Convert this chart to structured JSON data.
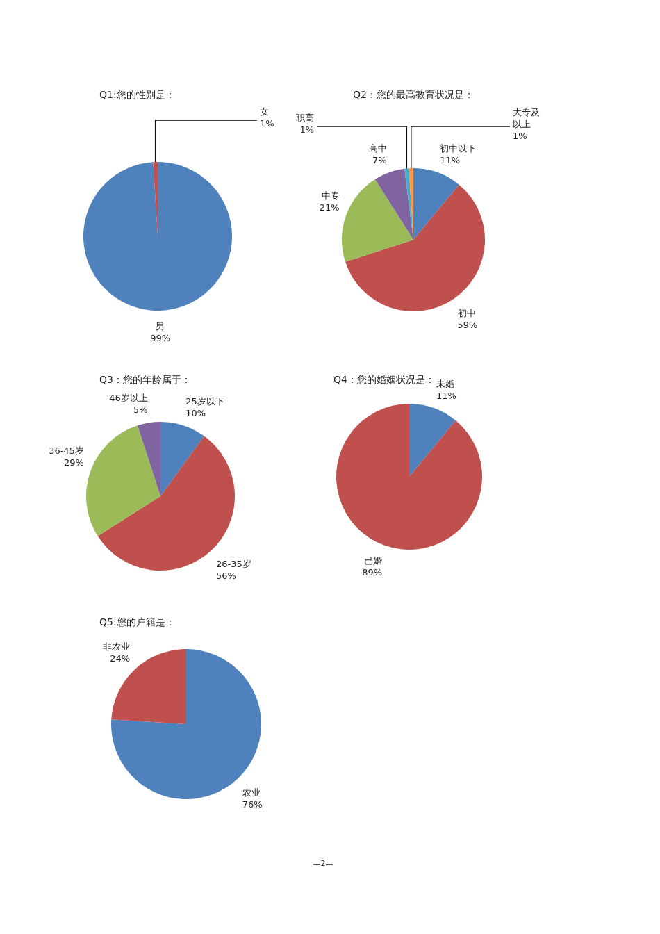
{
  "chart_data": [
    {
      "type": "pie",
      "title": "Q1:您的性别是：",
      "categories": [
        "男",
        "女"
      ],
      "values": [
        99,
        1
      ],
      "value_labels": [
        "99%",
        "1%"
      ],
      "colors": [
        "#4f81bd",
        "#c0504d"
      ]
    },
    {
      "type": "pie",
      "title": "Q2：您的最高教育状况是：",
      "categories": [
        "初中以下",
        "初中",
        "中专",
        "高中",
        "职高",
        "大专及以上"
      ],
      "values": [
        11,
        59,
        21,
        7,
        1,
        1
      ],
      "value_labels": [
        "11%",
        "59%",
        "21%",
        "7%",
        "1%",
        "1%"
      ],
      "colors": [
        "#4f81bd",
        "#c0504d",
        "#9bbb59",
        "#8064a2",
        "#4bacc6",
        "#f79646"
      ]
    },
    {
      "type": "pie",
      "title": "Q3：您的年龄属于：",
      "categories": [
        "25岁以下",
        "26-35岁",
        "36-45岁",
        "46岁以上"
      ],
      "values": [
        10,
        56,
        29,
        5
      ],
      "value_labels": [
        "10%",
        "56%",
        "29%",
        "5%"
      ],
      "colors": [
        "#4f81bd",
        "#c0504d",
        "#9bbb59",
        "#8064a2"
      ]
    },
    {
      "type": "pie",
      "title": "Q4：您的婚姻状况是：",
      "categories": [
        "未婚",
        "已婚"
      ],
      "values": [
        11,
        89
      ],
      "value_labels": [
        "11%",
        "89%"
      ],
      "colors": [
        "#4f81bd",
        "#c0504d"
      ]
    },
    {
      "type": "pie",
      "title": "Q5:您的户籍是：",
      "categories": [
        "农业",
        "非农业"
      ],
      "values": [
        76,
        24
      ],
      "value_labels": [
        "76%",
        "24%"
      ],
      "colors": [
        "#4f81bd",
        "#c0504d"
      ],
      "annotations": [
        "—2—"
      ]
    }
  ]
}
